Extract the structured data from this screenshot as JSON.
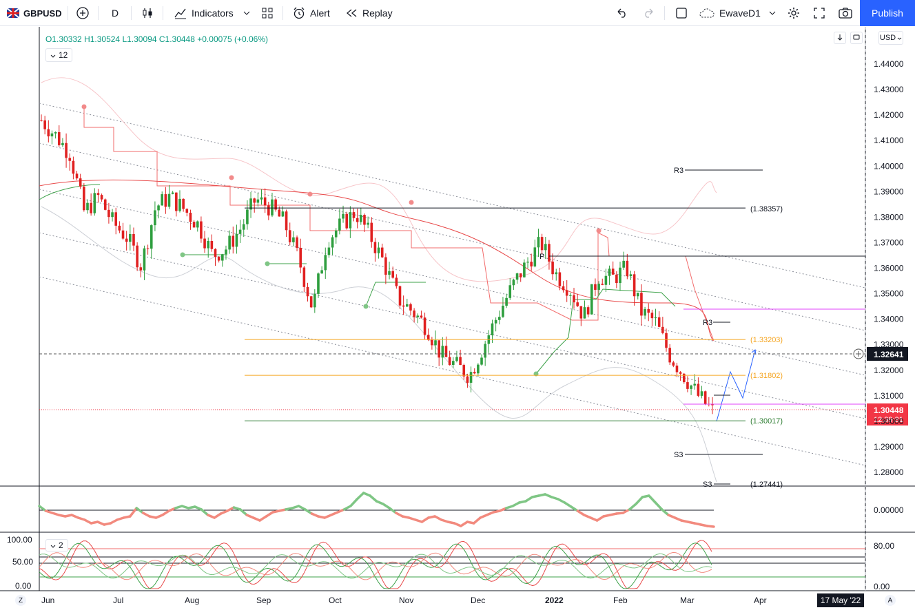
{
  "toolbar": {
    "symbol": "GBPUSD",
    "interval": "D",
    "indicators": "Indicators",
    "alert": "Alert",
    "replay": "Replay",
    "layout_name": "EwaveD1",
    "publish": "Publish"
  },
  "legend": {
    "open": "O1.30332",
    "high": "H1.30524",
    "low": "L1.30094",
    "close": "C1.30448",
    "change": "+0.00075 (+0.06%)",
    "interval_count": "12",
    "osc_count": "2"
  },
  "price_axis": {
    "currency": "USD",
    "ticks": [
      "1.44000",
      "1.43000",
      "1.42000",
      "1.41000",
      "1.40000",
      "1.39000",
      "1.38000",
      "1.37000",
      "1.36000",
      "1.35000",
      "1.34000",
      "1.33000",
      "1.32000",
      "1.31000",
      "1.30000",
      "1.29000",
      "1.28000"
    ],
    "crosshair_price": "1.32641",
    "last_price": "1.30448",
    "countdown": "12:39:31",
    "osc1_tick": "0.00000",
    "osc2_ticks": [
      "80.00",
      "0.00"
    ],
    "osc2_left_ticks": [
      "100.00",
      "50.00",
      "0.00"
    ]
  },
  "time_axis": {
    "labels": [
      "Jun",
      "Jul",
      "Aug",
      "Sep",
      "Oct",
      "Nov",
      "Dec",
      "2022",
      "Feb",
      "Mar",
      "Apr"
    ],
    "crosshair_date": "17 May '22",
    "left_btn": "Z",
    "right_btn": "A"
  },
  "levels": {
    "l1": "(1.38357)",
    "l2": "(1.33203)",
    "l3": "(1.31802)",
    "l4": "(1.30017)",
    "l5": "(1.27441)",
    "r3a": "R3",
    "r3b": "R3",
    "p": "P",
    "s3a": "S3",
    "s3b": "S3"
  },
  "colors": {
    "up": "#089981",
    "down": "#f23645",
    "candle_up": "#2e9e3e",
    "candle_down": "#e02020",
    "accent": "#2962ff"
  },
  "chart_data": {
    "type": "candlestick",
    "symbol": "GBPUSD",
    "interval": "D",
    "ylim": [
      1.275,
      1.448
    ],
    "x": [
      "Jun",
      "Jul",
      "Aug",
      "Sep",
      "Oct",
      "Nov",
      "Dec",
      "2022",
      "Feb",
      "Mar"
    ],
    "close_path": [
      1.418,
      1.412,
      1.405,
      1.382,
      1.388,
      1.378,
      1.372,
      1.361,
      1.384,
      1.388,
      1.383,
      1.377,
      1.365,
      1.368,
      1.376,
      1.387,
      1.384,
      1.378,
      1.364,
      1.344,
      1.371,
      1.377,
      1.382,
      1.373,
      1.362,
      1.348,
      1.343,
      1.337,
      1.326,
      1.322,
      1.318,
      1.33,
      1.342,
      1.353,
      1.362,
      1.37,
      1.358,
      1.352,
      1.341,
      1.357,
      1.356,
      1.36,
      1.343,
      1.339,
      1.326,
      1.318,
      1.31,
      1.304
    ],
    "horizontal_levels": [
      1.38357,
      1.33203,
      1.31802,
      1.30017,
      1.27441
    ]
  }
}
